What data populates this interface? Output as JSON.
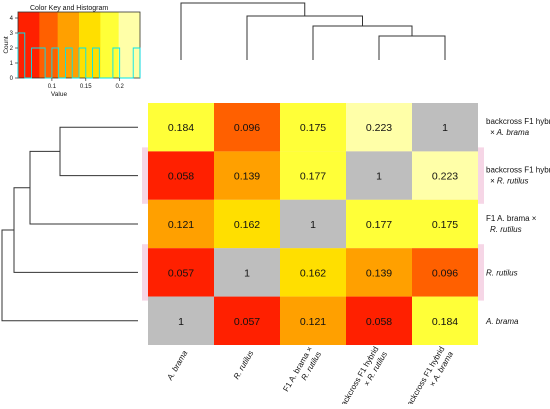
{
  "chart_data": {
    "type": "heatmap",
    "rows": [
      {
        "label": "backcross F1 hybrid",
        "label2": "× A. brama",
        "italic2": true
      },
      {
        "label": "backcross F1 hybrid",
        "label2": "× R. rutilus",
        "italic2": true
      },
      {
        "label": "F1 A. brama ×",
        "label2": "R. rutilus",
        "italic2": true
      },
      {
        "label": "R. rutilus",
        "label2": "",
        "italic": true
      },
      {
        "label": "A. brama",
        "label2": "",
        "italic": true
      }
    ],
    "columns": [
      {
        "label": "A. brama",
        "label2": ""
      },
      {
        "label": "R. rutilus",
        "label2": ""
      },
      {
        "label": "F1 A. brama ×",
        "label2": "R. rutilus"
      },
      {
        "label": "backcross F1 hybrid",
        "label2": "× R. rutilus"
      },
      {
        "label": "backcross F1 hybrid",
        "label2": "× A. brama"
      }
    ],
    "values": [
      [
        "0.184",
        "0.096",
        "0.175",
        "0.223",
        "1"
      ],
      [
        "0.058",
        "0.139",
        "0.177",
        "1",
        "0.223"
      ],
      [
        "0.121",
        "0.162",
        "1",
        "0.177",
        "0.175"
      ],
      [
        "0.057",
        "1",
        "0.162",
        "0.139",
        "0.096"
      ],
      [
        "1",
        "0.057",
        "0.121",
        "0.058",
        "0.184"
      ]
    ],
    "color_key": {
      "title": "Color Key and Histogram",
      "xlabel": "Value",
      "ylabel": "Count",
      "x_ticks": [
        "0.1",
        "0.15",
        "0.2"
      ],
      "y_ticks": [
        "0",
        "1",
        "2",
        "3",
        "4"
      ],
      "value_range": [
        0.05,
        0.23
      ],
      "histogram_counts": [
        3,
        0,
        2,
        2,
        0,
        2,
        0,
        2,
        0,
        2,
        0,
        2,
        0,
        0,
        2,
        0,
        0,
        2
      ]
    },
    "colors": {
      "diagonal": "#bebebe",
      "scale": [
        "#ff0000",
        "#ff8000",
        "#ffff00",
        "#ffffe0"
      ]
    }
  }
}
